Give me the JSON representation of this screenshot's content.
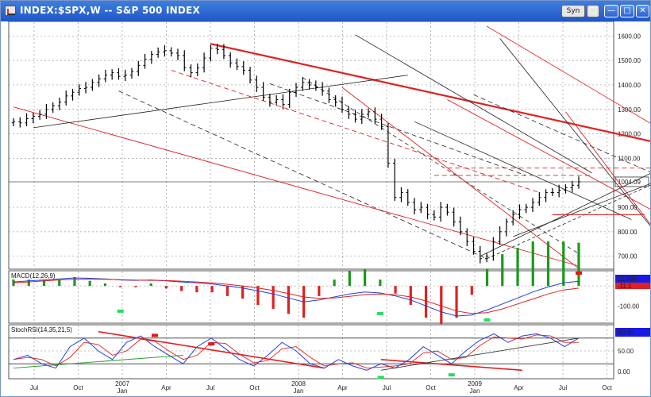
{
  "window": {
    "title": "INDEX:$SPX,W -- S&P 500 INDEX",
    "sync_label": "Syn",
    "buttons": [
      "minimize",
      "maximize",
      "close"
    ]
  },
  "colors": {
    "price_bars": "#000000",
    "trend_red": "#e02020",
    "trend_dark": "#222222",
    "macd_line": "#2040e0",
    "signal_line": "#e02020",
    "hist_pos": "#1a9a1a",
    "hist_neg": "#e02020",
    "readout_blue": "#1a1ae6",
    "marker_green": "#20e060",
    "marker_red": "#e01818"
  },
  "chart_data": [
    {
      "type": "line",
      "title": "INDEX:$SPX,W -- S&P 500 INDEX",
      "x_ticks": [
        "Jul",
        "Oct",
        "2007 Jan",
        "Apr",
        "Jul",
        "Oct",
        "2008 Jan",
        "Apr",
        "Jul",
        "Oct",
        "2009 Jan",
        "Apr",
        "Jul",
        "Oct"
      ],
      "y_ticks": [
        "1600.00",
        "1500.00",
        "1400.00",
        "1300.00",
        "1200.00",
        "1100.00",
        "1004.09",
        "900.00",
        "800.00",
        "700.00"
      ],
      "ylim": [
        660,
        1640
      ],
      "last_value": "1004.09",
      "series": [
        {
          "values": [
            1250,
            1245,
            1262,
            1272,
            1280,
            1300,
            1315,
            1330,
            1355,
            1370,
            1385,
            1390,
            1410,
            1425,
            1440,
            1450,
            1435,
            1440,
            1455,
            1480,
            1505,
            1525,
            1535,
            1540,
            1530,
            1520,
            1470,
            1450,
            1470,
            1510,
            1550,
            1545,
            1520,
            1490,
            1475,
            1460,
            1420,
            1390,
            1350,
            1330,
            1340,
            1320,
            1370,
            1390,
            1410,
            1400,
            1390,
            1375,
            1340,
            1330,
            1300,
            1280,
            1260,
            1280,
            1290,
            1260,
            1230,
            1080,
            940,
            960,
            920,
            890,
            900,
            870,
            860,
            900,
            880,
            840,
            800,
            760,
            720,
            690,
            700,
            760,
            800,
            840,
            870,
            890,
            900,
            920,
            940,
            960,
            960,
            970,
            980,
            990,
            1004
          ]
        }
      ]
    },
    {
      "type": "line",
      "title": "MACD(12,26,9)",
      "readouts": [
        "22.936",
        "-11.1"
      ],
      "y_ticks": [
        "-100.00"
      ],
      "series": [
        {
          "values": [
            20,
            25,
            30,
            35,
            40,
            38,
            35,
            30,
            28,
            30,
            25,
            20,
            15,
            10,
            0,
            -10,
            -25,
            -40,
            -60,
            -80,
            -70,
            -55,
            -40,
            -30,
            -35,
            -50,
            -70,
            -100,
            -130,
            -150,
            -145,
            -120,
            -90,
            -60,
            -30,
            -5,
            15,
            23
          ]
        },
        {
          "values": [
            15,
            20,
            25,
            30,
            33,
            34,
            33,
            31,
            29,
            28,
            27,
            24,
            20,
            15,
            8,
            0,
            -10,
            -22,
            -38,
            -55,
            -62,
            -60,
            -52,
            -43,
            -40,
            -44,
            -55,
            -75,
            -100,
            -125,
            -138,
            -133,
            -115,
            -90,
            -65,
            -40,
            -20,
            -11
          ]
        }
      ]
    },
    {
      "type": "line",
      "title": "StochRSI(14,35,21,5)",
      "readouts": [
        "80.46"
      ],
      "y_ticks": [
        "50.00",
        "0.00"
      ],
      "series": [
        {
          "values": [
            30,
            40,
            20,
            10,
            60,
            80,
            50,
            30,
            70,
            85,
            60,
            40,
            20,
            60,
            80,
            55,
            30,
            15,
            40,
            70,
            50,
            20,
            10,
            30,
            15,
            5,
            20,
            10,
            30,
            60,
            40,
            20,
            50,
            75,
            90,
            70,
            85,
            90,
            80,
            60,
            80
          ]
        }
      ]
    }
  ]
}
